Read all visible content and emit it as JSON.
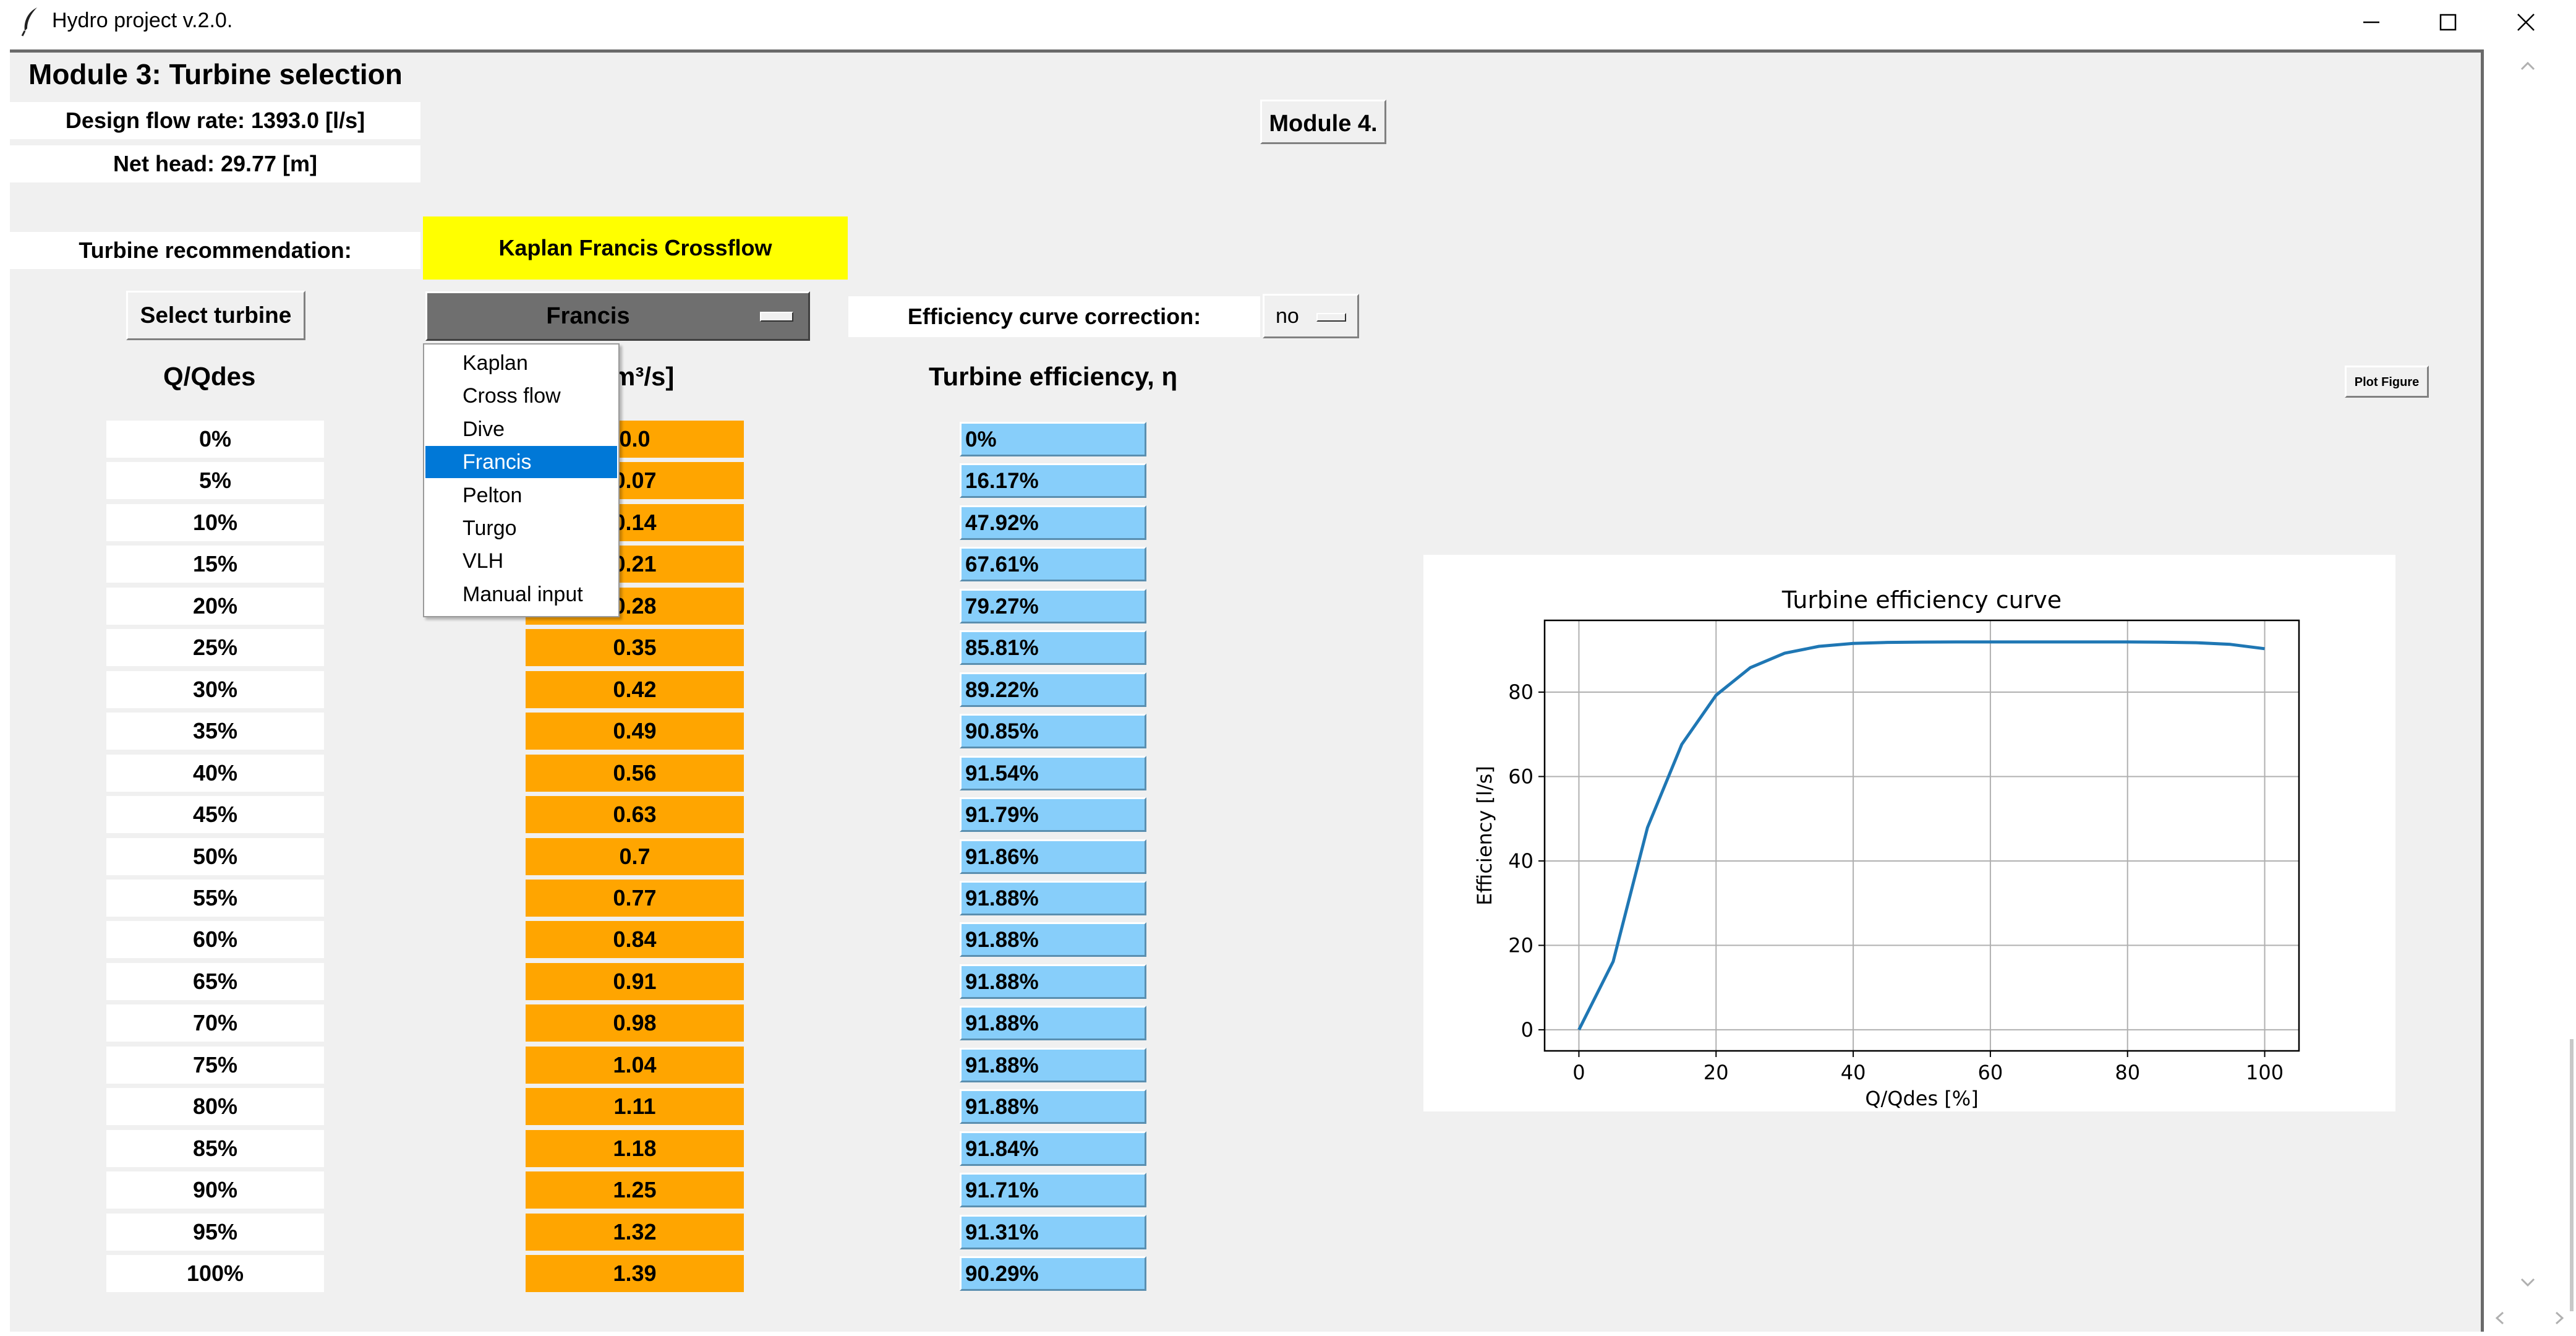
{
  "window": {
    "title": "Hydro project v.2.0.",
    "controls": {
      "minimize": "—",
      "maximize": "☐",
      "close": "✕"
    }
  },
  "module": {
    "title": "Module 3: Turbine selection",
    "design_flow": "Design flow rate: 1393.0 [l/s]",
    "net_head": "Net head: 29.77 [m]",
    "module4_label": "Module 4.",
    "recommendation_label": "Turbine recommendation:",
    "recommendation_value": "Kaplan Francis Crossflow",
    "select_turbine_label": "Select turbine",
    "selected_turbine": "Francis",
    "efficiency_correction_label": "Efficiency curve correction:",
    "efficiency_correction_value": "no",
    "plot_figure_label": "Plot Figure"
  },
  "table": {
    "headers": {
      "q": "Q/Qdes",
      "flow": "[m³/s]",
      "efficiency": "Turbine efficiency, η"
    },
    "q": [
      "0%",
      "5%",
      "10%",
      "15%",
      "20%",
      "25%",
      "30%",
      "35%",
      "40%",
      "45%",
      "50%",
      "55%",
      "60%",
      "65%",
      "70%",
      "75%",
      "80%",
      "85%",
      "90%",
      "95%",
      "100%"
    ],
    "flow": [
      "0.0",
      "0.07",
      "0.14",
      "0.21",
      "0.28",
      "0.35",
      "0.42",
      "0.49",
      "0.56",
      "0.63",
      "0.7",
      "0.77",
      "0.84",
      "0.91",
      "0.98",
      "1.04",
      "1.11",
      "1.18",
      "1.25",
      "1.32",
      "1.39"
    ],
    "efficiency": [
      "0%",
      "16.17%",
      "47.92%",
      "67.61%",
      "79.27%",
      "85.81%",
      "89.22%",
      "90.85%",
      "91.54%",
      "91.79%",
      "91.86%",
      "91.88%",
      "91.88%",
      "91.88%",
      "91.88%",
      "91.88%",
      "91.88%",
      "91.84%",
      "91.71%",
      "91.31%",
      "90.29%"
    ]
  },
  "dropdown": {
    "items": [
      "Kaplan",
      "Cross flow",
      "Dive",
      "Francis",
      "Pelton",
      "Turgo",
      "VLH",
      "Manual input"
    ],
    "selected": "Francis"
  },
  "chart_data": {
    "type": "line",
    "title": "Turbine efficiency curve",
    "xlabel": "Q/Qdes [%]",
    "ylabel": "Efficiency [l/s]",
    "xlim": [
      -5,
      105
    ],
    "ylim": [
      -5,
      97
    ],
    "xticks": [
      0,
      20,
      40,
      60,
      80,
      100
    ],
    "yticks": [
      0,
      20,
      40,
      60,
      80
    ],
    "grid": true,
    "color": "#1f77b4",
    "x": [
      0,
      5,
      10,
      15,
      20,
      25,
      30,
      35,
      40,
      45,
      50,
      55,
      60,
      65,
      70,
      75,
      80,
      85,
      90,
      95,
      100
    ],
    "y": [
      0,
      16.17,
      47.92,
      67.61,
      79.27,
      85.81,
      89.22,
      90.85,
      91.54,
      91.79,
      91.86,
      91.88,
      91.88,
      91.88,
      91.88,
      91.88,
      91.88,
      91.84,
      91.71,
      91.31,
      90.29
    ]
  }
}
